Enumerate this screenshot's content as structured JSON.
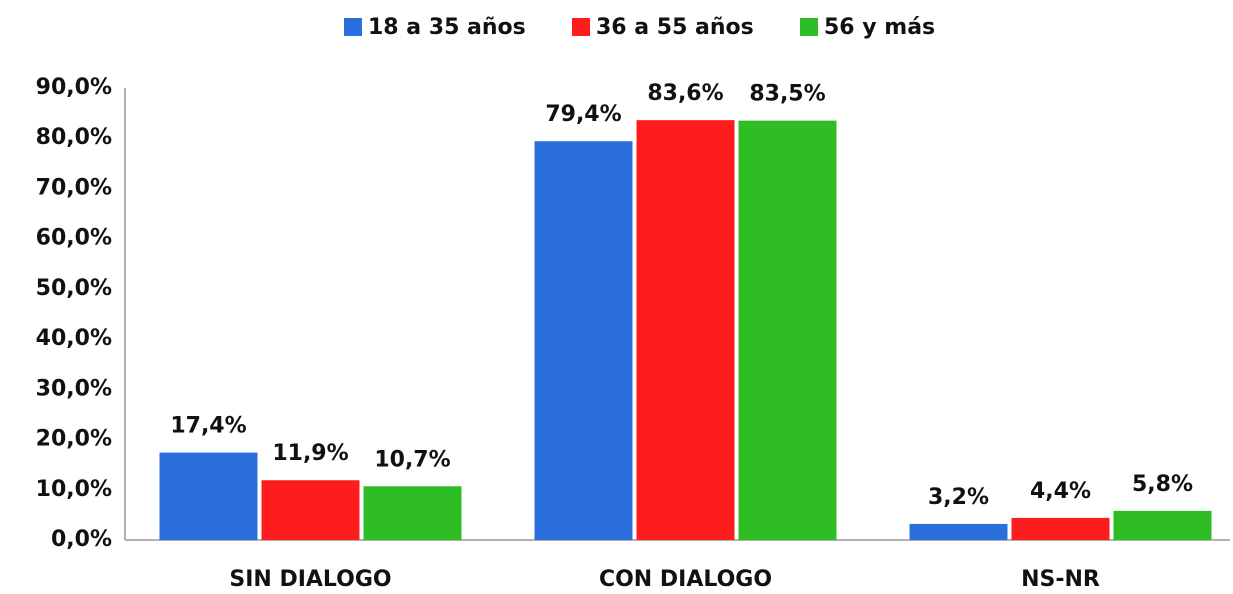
{
  "chart_data": {
    "type": "bar",
    "categories": [
      "SIN DIALOGO",
      "CON DIALOGO",
      "NS-NR"
    ],
    "series": [
      {
        "name": "18 a 35 años",
        "color": "#2a6fdb",
        "values": [
          17.4,
          79.4,
          3.2
        ],
        "value_labels": [
          "17,4%",
          "79,4%",
          "3,2%"
        ]
      },
      {
        "name": "36 a 55 años",
        "color": "#ff1c1c",
        "values": [
          11.9,
          83.6,
          4.4
        ],
        "value_labels": [
          "11,9%",
          "83,6%",
          "4,4%"
        ]
      },
      {
        "name": "56 y más",
        "color": "#2ebd25",
        "values": [
          10.7,
          83.5,
          5.8
        ],
        "value_labels": [
          "10,7%",
          "83,5%",
          "5,8%"
        ]
      }
    ],
    "ylim": [
      0,
      90
    ],
    "yticks": [
      {
        "value": 0,
        "label": "0,0%"
      },
      {
        "value": 10,
        "label": "10,0%"
      },
      {
        "value": 20,
        "label": "20,0%"
      },
      {
        "value": 30,
        "label": "30,0%"
      },
      {
        "value": 40,
        "label": "40,0%"
      },
      {
        "value": 50,
        "label": "50,0%"
      },
      {
        "value": 60,
        "label": "60,0%"
      },
      {
        "value": 70,
        "label": "70,0%"
      },
      {
        "value": 80,
        "label": "80,0%"
      },
      {
        "value": 90,
        "label": "90,0%"
      }
    ],
    "grid": false,
    "legend": "top"
  }
}
